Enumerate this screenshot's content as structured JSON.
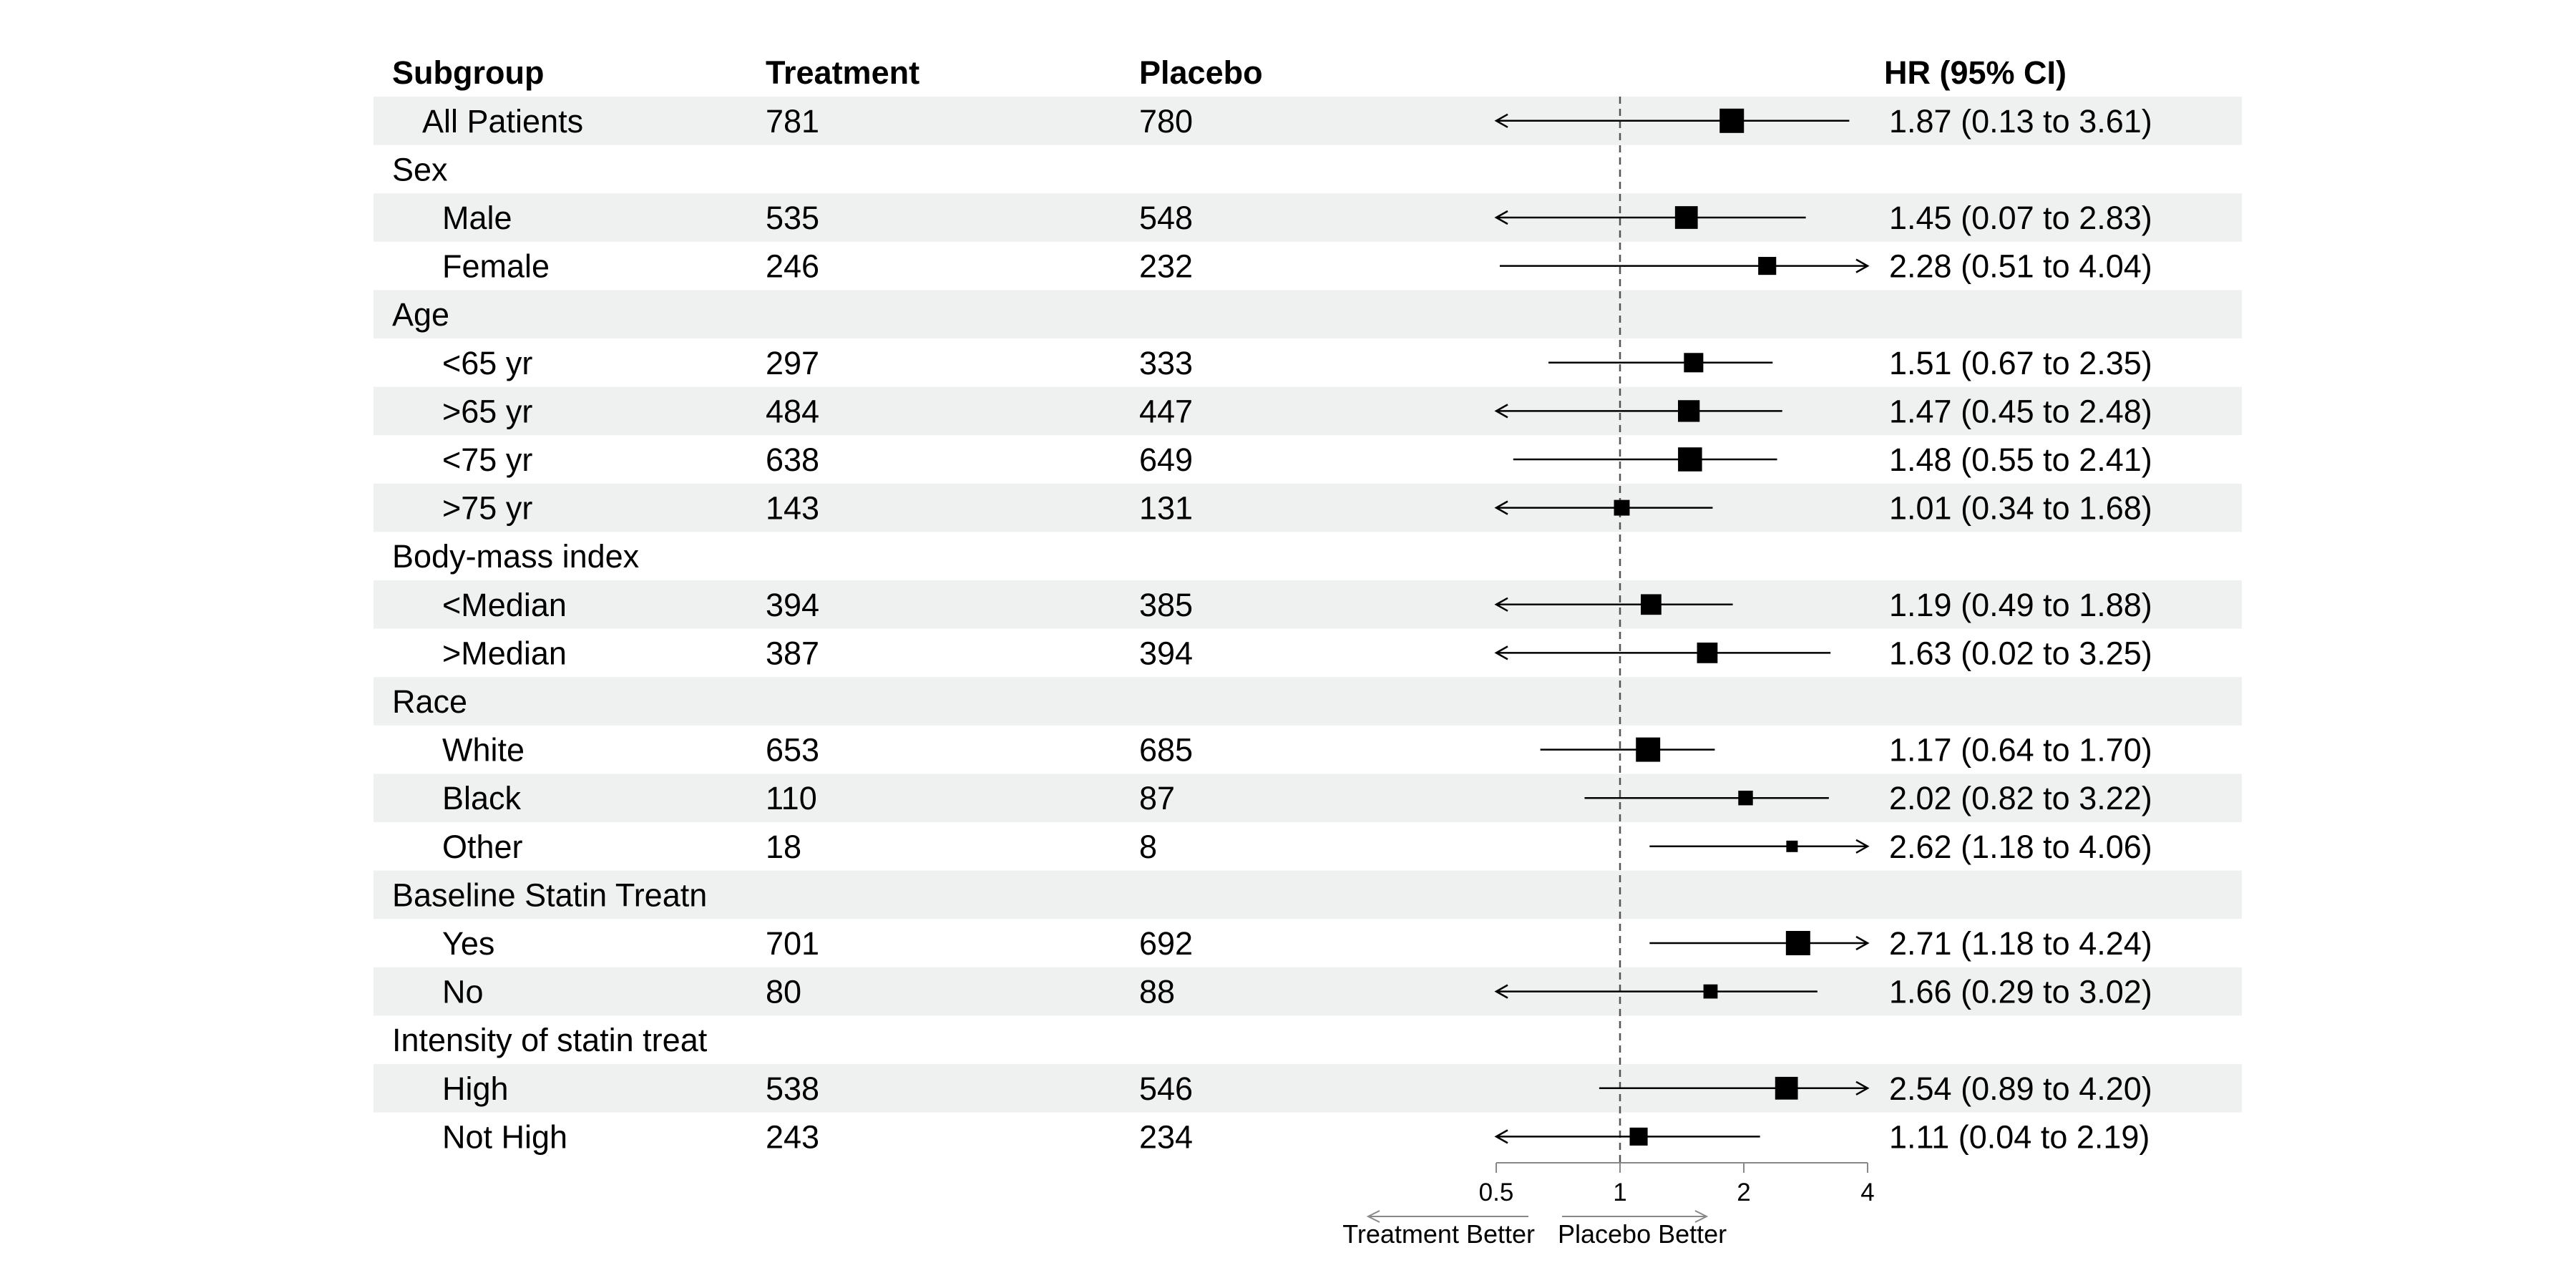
{
  "chart_data": {
    "type": "forest",
    "columns": {
      "subgroup": "Subgroup",
      "treatment": "Treatment",
      "placebo": "Placebo",
      "hr": "HR (95% CI)"
    },
    "rows": [
      {
        "label": "All Patients",
        "level": 0,
        "treatment": "781",
        "placebo": "780",
        "hr": 1.87,
        "lower": 0.13,
        "upper": 3.61,
        "hr_text": "1.87 (0.13 to 3.61)"
      },
      {
        "label": "Sex",
        "level": -1
      },
      {
        "label": "Male",
        "level": 1,
        "treatment": "535",
        "placebo": "548",
        "hr": 1.45,
        "lower": 0.07,
        "upper": 2.83,
        "hr_text": "1.45 (0.07 to 2.83)"
      },
      {
        "label": "Female",
        "level": 1,
        "treatment": "246",
        "placebo": "232",
        "hr": 2.28,
        "lower": 0.51,
        "upper": 4.04,
        "hr_text": "2.28 (0.51 to 4.04)"
      },
      {
        "label": "Age",
        "level": -1
      },
      {
        "label": "<65 yr",
        "level": 1,
        "treatment": "297",
        "placebo": "333",
        "hr": 1.51,
        "lower": 0.67,
        "upper": 2.35,
        "hr_text": "1.51 (0.67 to 2.35)"
      },
      {
        "label": ">65 yr",
        "level": 1,
        "treatment": "484",
        "placebo": "447",
        "hr": 1.47,
        "lower": 0.45,
        "upper": 2.48,
        "hr_text": "1.47 (0.45 to 2.48)"
      },
      {
        "label": "<75 yr",
        "level": 1,
        "treatment": "638",
        "placebo": "649",
        "hr": 1.48,
        "lower": 0.55,
        "upper": 2.41,
        "hr_text": "1.48 (0.55 to 2.41)"
      },
      {
        "label": ">75 yr",
        "level": 1,
        "treatment": "143",
        "placebo": "131",
        "hr": 1.01,
        "lower": 0.34,
        "upper": 1.68,
        "hr_text": "1.01 (0.34 to 1.68)"
      },
      {
        "label": "Body-mass index",
        "level": -1
      },
      {
        "label": "<Median",
        "level": 1,
        "treatment": "394",
        "placebo": "385",
        "hr": 1.19,
        "lower": 0.49,
        "upper": 1.88,
        "hr_text": "1.19 (0.49 to 1.88)"
      },
      {
        "label": ">Median",
        "level": 1,
        "treatment": "387",
        "placebo": "394",
        "hr": 1.63,
        "lower": 0.02,
        "upper": 3.25,
        "hr_text": "1.63 (0.02 to 3.25)"
      },
      {
        "label": "Race",
        "level": -1
      },
      {
        "label": "White",
        "level": 1,
        "treatment": "653",
        "placebo": "685",
        "hr": 1.17,
        "lower": 0.64,
        "upper": 1.7,
        "hr_text": "1.17 (0.64 to 1.70)"
      },
      {
        "label": "Black",
        "level": 1,
        "treatment": "110",
        "placebo": "87",
        "hr": 2.02,
        "lower": 0.82,
        "upper": 3.22,
        "hr_text": "2.02 (0.82 to 3.22)"
      },
      {
        "label": "Other",
        "level": 1,
        "treatment": "18",
        "placebo": "8",
        "hr": 2.62,
        "lower": 1.18,
        "upper": 4.06,
        "hr_text": "2.62 (1.18 to 4.06)"
      },
      {
        "label": "Baseline Statin Treatn",
        "level": -1
      },
      {
        "label": "Yes",
        "level": 1,
        "treatment": "701",
        "placebo": "692",
        "hr": 2.71,
        "lower": 1.18,
        "upper": 4.24,
        "hr_text": "2.71 (1.18 to 4.24)"
      },
      {
        "label": "No",
        "level": 1,
        "treatment": "80",
        "placebo": "88",
        "hr": 1.66,
        "lower": 0.29,
        "upper": 3.02,
        "hr_text": "1.66 (0.29 to 3.02)"
      },
      {
        "label": "Intensity of statin treat",
        "level": -1
      },
      {
        "label": "High",
        "level": 1,
        "treatment": "538",
        "placebo": "546",
        "hr": 2.54,
        "lower": 0.89,
        "upper": 4.2,
        "hr_text": "2.54 (0.89 to 4.20)"
      },
      {
        "label": "Not High",
        "level": 1,
        "treatment": "243",
        "placebo": "234",
        "hr": 1.11,
        "lower": 0.04,
        "upper": 2.19,
        "hr_text": "1.11 (0.04 to 2.19)"
      }
    ],
    "x_axis": {
      "scale": "log2",
      "ticks": [
        0.5,
        1,
        2,
        4
      ],
      "tick_labels": [
        "0.5",
        "1",
        "2",
        "4"
      ],
      "xlim": [
        0.5,
        4
      ],
      "reference": 1
    },
    "direction_labels": {
      "left": "Treatment Better",
      "right": "Placebo Better"
    },
    "colors": {
      "stripe": "#eff1f0",
      "marker": "#000000",
      "reference_line": "#555555",
      "axis": "#888888"
    }
  }
}
